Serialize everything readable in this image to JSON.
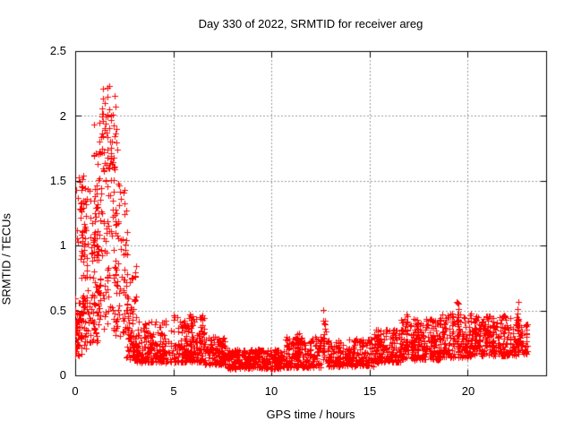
{
  "chart_data": {
    "type": "scatter",
    "title": "Day 330 of 2022, SRMTID for receiver areg",
    "xlabel": "GPS time / hours",
    "ylabel": "SRMTID / TECUs",
    "xlim": [
      0,
      24
    ],
    "ylim": [
      0,
      2.5
    ],
    "xticks": [
      0,
      5,
      10,
      15,
      20
    ],
    "yticks": [
      0,
      0.5,
      1,
      1.5,
      2,
      2.5
    ],
    "xtick_labels": [
      "0",
      "5",
      "10",
      "15",
      "20"
    ],
    "ytick_labels": [
      "0",
      "0.5",
      "1",
      "1.5",
      "2",
      "2.5"
    ],
    "grid": "dotted gray lines at major ticks, ticks mirrored on all four borders",
    "legend": "none",
    "marker": "plus",
    "marker_color": "#ff0000",
    "grid_color": "#9a9a9a",
    "axis_color": "#000000",
    "background": "#ffffff",
    "seed": 20221130,
    "series_name": "SRMTID for receiver areg (day 330, 2022)",
    "data_time_range_hours": [
      0,
      23.05
    ],
    "description": "Dense scatter of + markers: high scattered values 0.15-2.25 TECU during hours 0-3 (peak ~2.25 near hour 1.6), dropping to a dense low band 0.05-0.3 TECU through hours 3-15, then slowly rising band 0.1-0.5 TECU with vertical spike clusters (up to ~0.58) toward hour 23.",
    "distribution_segments": [
      {
        "t0": 0.0,
        "t1": 0.35,
        "ymin": 0.15,
        "ymax": 0.6,
        "n": 30,
        "bias": 1.2
      },
      {
        "t0": 0.05,
        "t1": 0.5,
        "ymin": 0.8,
        "ymax": 1.55,
        "n": 28,
        "bias": 0.9
      },
      {
        "t0": 0.0,
        "t1": 0.6,
        "ymin": 0.2,
        "ymax": 0.6,
        "n": 25,
        "bias": 1.2
      },
      {
        "t0": 0.3,
        "t1": 1.3,
        "ymin": 0.25,
        "ymax": 1.45,
        "n": 120,
        "bias": 1.1
      },
      {
        "t0": 0.9,
        "t1": 2.15,
        "ymin": 0.35,
        "ymax": 2.0,
        "n": 135,
        "bias": 1.1
      },
      {
        "t0": 1.35,
        "t1": 2.05,
        "ymin": 1.5,
        "ymax": 2.25,
        "n": 32,
        "bias": 1.3
      },
      {
        "t0": 2.0,
        "t1": 2.65,
        "ymin": 0.3,
        "ymax": 1.5,
        "n": 70,
        "bias": 1.2
      },
      {
        "t0": 2.6,
        "t1": 3.15,
        "ymin": 0.12,
        "ymax": 0.85,
        "n": 70,
        "bias": 1.5
      },
      {
        "t0": 3.1,
        "t1": 4.6,
        "ymin": 0.1,
        "ymax": 0.42,
        "n": 170,
        "bias": 1.6
      },
      {
        "t0": 4.6,
        "t1": 6.6,
        "ymin": 0.1,
        "ymax": 0.47,
        "n": 210,
        "bias": 1.5
      },
      {
        "t0": 6.6,
        "t1": 7.7,
        "ymin": 0.08,
        "ymax": 0.3,
        "n": 110,
        "bias": 1.4
      },
      {
        "t0": 7.7,
        "t1": 10.6,
        "ymin": 0.05,
        "ymax": 0.2,
        "n": 300,
        "bias": 1.2
      },
      {
        "t0": 10.6,
        "t1": 12.6,
        "ymin": 0.06,
        "ymax": 0.3,
        "n": 210,
        "bias": 1.6
      },
      {
        "t0": 12.85,
        "t1": 15.2,
        "ymin": 0.07,
        "ymax": 0.28,
        "n": 240,
        "bias": 1.5
      },
      {
        "t0": 15.2,
        "t1": 16.6,
        "ymin": 0.1,
        "ymax": 0.36,
        "n": 150,
        "bias": 1.5
      },
      {
        "t0": 16.6,
        "t1": 18.6,
        "ymin": 0.12,
        "ymax": 0.44,
        "n": 210,
        "bias": 1.4
      },
      {
        "t0": 18.6,
        "t1": 20.2,
        "ymin": 0.14,
        "ymax": 0.48,
        "n": 170,
        "bias": 1.3
      },
      {
        "t0": 20.2,
        "t1": 22.3,
        "ymin": 0.15,
        "ymax": 0.46,
        "n": 220,
        "bias": 1.3
      },
      {
        "t0": 22.3,
        "t1": 23.05,
        "ymin": 0.15,
        "ymax": 0.4,
        "n": 70,
        "bias": 1.3
      }
    ],
    "spikes": [
      {
        "t": 0.05,
        "ybase": 0.15,
        "ytop": 0.5,
        "n": 14
      },
      {
        "t": 5.9,
        "ybase": 0.15,
        "ytop": 0.47,
        "n": 10
      },
      {
        "t": 11.35,
        "ybase": 0.1,
        "ytop": 0.33,
        "n": 12
      },
      {
        "t": 12.7,
        "ybase": 0.12,
        "ytop": 0.55,
        "n": 22
      },
      {
        "t": 16.9,
        "ybase": 0.15,
        "ytop": 0.5,
        "n": 14
      },
      {
        "t": 17.45,
        "ybase": 0.18,
        "ytop": 0.52,
        "n": 12
      },
      {
        "t": 19.5,
        "ybase": 0.2,
        "ytop": 0.58,
        "n": 16
      },
      {
        "t": 21.0,
        "ybase": 0.2,
        "ytop": 0.5,
        "n": 12
      },
      {
        "t": 22.55,
        "ybase": 0.18,
        "ytop": 0.57,
        "n": 20
      }
    ],
    "notable_points": [
      [
        1.62,
        2.22
      ],
      [
        1.5,
        2.1
      ],
      [
        1.72,
        2.05
      ],
      [
        2.1,
        1.9
      ],
      [
        0.02,
        0.15
      ]
    ]
  }
}
